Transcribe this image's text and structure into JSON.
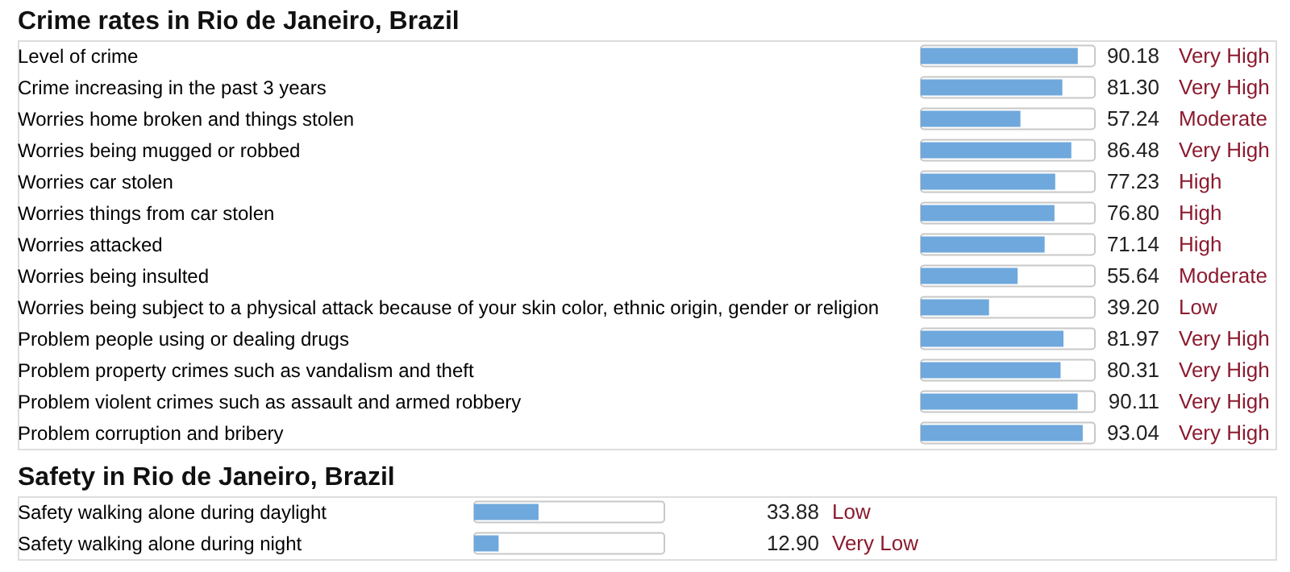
{
  "chart_data": [
    {
      "type": "bar",
      "orientation": "horizontal",
      "title": "Crime rates in Rio de Janeiro, Brazil",
      "categories": [
        "Level of crime",
        "Crime increasing in the past 3 years",
        "Worries home broken and things stolen",
        "Worries being mugged or robbed",
        "Worries car stolen",
        "Worries things from car stolen",
        "Worries attacked",
        "Worries being insulted",
        "Worries being subject to a physical attack because of your skin color, ethnic origin, gender or religion",
        "Problem people using or dealing drugs",
        "Problem property crimes such as vandalism and theft",
        "Problem violent crimes such as assault and armed robbery",
        "Problem corruption and bribery"
      ],
      "values": [
        90.18,
        81.3,
        57.24,
        86.48,
        77.23,
        76.8,
        71.14,
        55.64,
        39.2,
        81.97,
        80.31,
        90.11,
        93.04
      ],
      "value_labels": [
        "90.18",
        "81.30",
        "57.24",
        "86.48",
        "77.23",
        "76.80",
        "71.14",
        "55.64",
        "39.20",
        "81.97",
        "80.31",
        "90.11",
        "93.04"
      ],
      "color": "#6fa8dc",
      "xlim": [
        0,
        100
      ],
      "tick_labels": "y",
      "annotations": [
        "Very High",
        "Very High",
        "Moderate",
        "Very High",
        "High",
        "High",
        "High",
        "Moderate",
        "Low",
        "Very High",
        "Very High",
        "Very High",
        "Very High"
      ]
    },
    {
      "type": "bar",
      "orientation": "horizontal",
      "title": "Safety in Rio de Janeiro, Brazil",
      "categories": [
        "Safety walking alone during daylight",
        "Safety walking alone during night"
      ],
      "values": [
        33.88,
        12.9
      ],
      "value_labels": [
        "33.88",
        "12.90"
      ],
      "color": "#6fa8dc",
      "xlim": [
        0,
        100
      ],
      "tick_labels": "y",
      "annotations": [
        "Low",
        "Very Low"
      ]
    }
  ]
}
